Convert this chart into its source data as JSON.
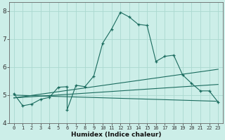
{
  "xlabel": "Humidex (Indice chaleur)",
  "bg_color": "#cceee8",
  "grid_color": "#aad8d0",
  "line_color": "#1a6b5e",
  "xlim": [
    -0.5,
    23.5
  ],
  "ylim": [
    4.0,
    8.3
  ],
  "xticks": [
    0,
    1,
    2,
    3,
    4,
    5,
    6,
    7,
    8,
    9,
    10,
    11,
    12,
    13,
    14,
    15,
    16,
    17,
    18,
    19,
    20,
    21,
    22,
    23
  ],
  "yticks": [
    4,
    5,
    6,
    7,
    8
  ],
  "main_x": [
    0,
    1,
    2,
    3,
    4,
    5,
    6,
    6,
    7,
    8,
    9,
    10,
    11,
    12,
    13,
    14,
    15,
    16,
    17,
    18,
    19,
    20,
    21,
    22,
    23
  ],
  "main_y": [
    5.05,
    4.62,
    4.68,
    4.85,
    4.92,
    5.28,
    5.3,
    4.48,
    5.35,
    5.3,
    5.68,
    6.85,
    7.35,
    7.95,
    7.78,
    7.52,
    7.48,
    6.2,
    6.38,
    6.42,
    5.72,
    5.42,
    5.15,
    5.15,
    4.75
  ],
  "line1_x": [
    0,
    23
  ],
  "line1_y": [
    5.0,
    4.78
  ],
  "line2_x": [
    0,
    23
  ],
  "line2_y": [
    4.9,
    5.38
  ],
  "line3_x": [
    0,
    23
  ],
  "line3_y": [
    4.9,
    5.92
  ]
}
